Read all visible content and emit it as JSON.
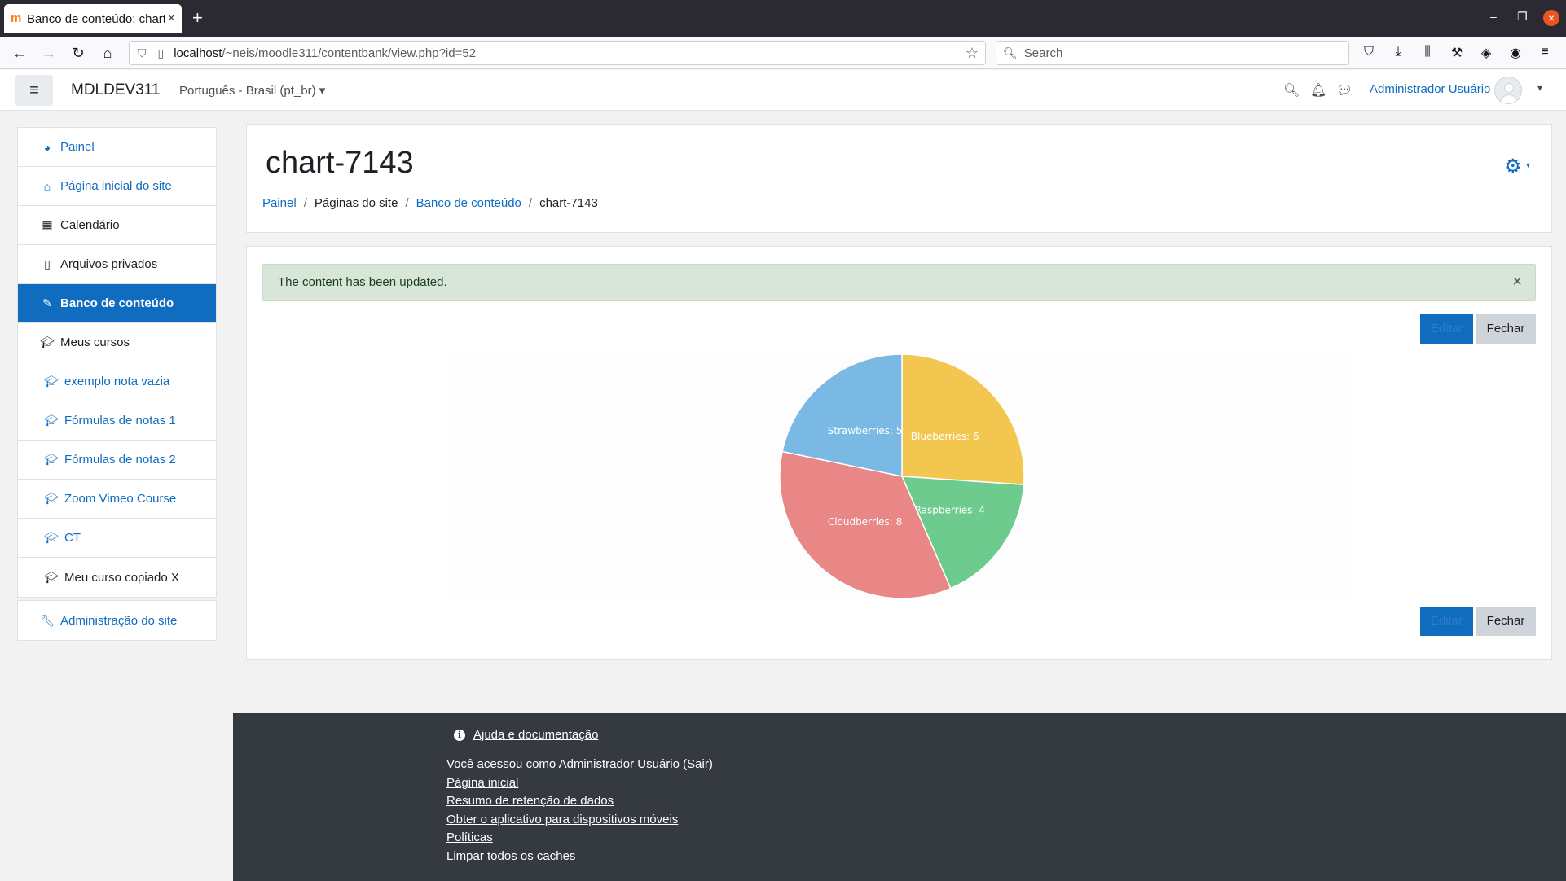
{
  "browser": {
    "tab_title": "Banco de conteúdo: chart",
    "tab_close": "×",
    "new_tab": "+",
    "url_host": "localhost",
    "url_path": "/~neis/moodle311/contentbank/view.php?id=52",
    "search_placeholder": "Search"
  },
  "topnav": {
    "site_name": "MDLDEV311",
    "language": "Português - Brasil (pt_br)",
    "user_name": "Administrador Usuário"
  },
  "drawer": {
    "group1": [
      {
        "label": "Painel",
        "icon": "dashboard-icon"
      },
      {
        "label": "Página inicial do site",
        "icon": "home-icon"
      },
      {
        "label": "Calendário",
        "icon": "calendar-icon"
      },
      {
        "label": "Arquivos privados",
        "icon": "file-icon"
      },
      {
        "label": "Banco de conteúdo",
        "icon": "paintbrush-icon"
      },
      {
        "label": "Meus cursos",
        "icon": "graduation-cap-icon"
      },
      {
        "label": "exemplo nota vazia",
        "icon": "graduation-cap-icon"
      },
      {
        "label": "Fórmulas de notas 1",
        "icon": "graduation-cap-icon"
      },
      {
        "label": "Fórmulas de notas 2",
        "icon": "graduation-cap-icon"
      },
      {
        "label": "Zoom Vimeo Course",
        "icon": "graduation-cap-icon"
      },
      {
        "label": "CT",
        "icon": "graduation-cap-icon"
      },
      {
        "label": "Meu curso copiado X",
        "icon": "graduation-cap-icon"
      }
    ],
    "admin": {
      "label": "Administração do site",
      "icon": "wrench-icon"
    }
  },
  "header": {
    "title": "chart-7143",
    "breadcrumb": [
      "Painel",
      "Páginas do site",
      "Banco de conteúdo",
      "chart-7143"
    ]
  },
  "content": {
    "alert": "The content has been updated.",
    "alert_close": "×",
    "edit_label": "Editar",
    "close_label": "Fechar"
  },
  "chart_data": {
    "type": "pie",
    "categories": [
      "Blueberries",
      "Raspberries",
      "Cloudberries",
      "Strawberries"
    ],
    "values": [
      6,
      4,
      8,
      5
    ],
    "colors": [
      "#f3c74f",
      "#6ccb8d",
      "#e88786",
      "#7ab9e3"
    ],
    "data_labels": [
      "Blueberries: 6",
      "Raspberries: 4",
      "Cloudberries: 8",
      "Strawberries: 5"
    ]
  },
  "footer": {
    "help": "Ajuda e documentação",
    "logged_prefix": "Você acessou como",
    "logged_user": "Administrador Usuário",
    "logout": "(Sair)",
    "links": [
      "Página inicial",
      "Resumo de retenção de dados",
      "Obter o aplicativo para dispositivos móveis",
      "Políticas",
      "Limpar todos os caches"
    ]
  }
}
